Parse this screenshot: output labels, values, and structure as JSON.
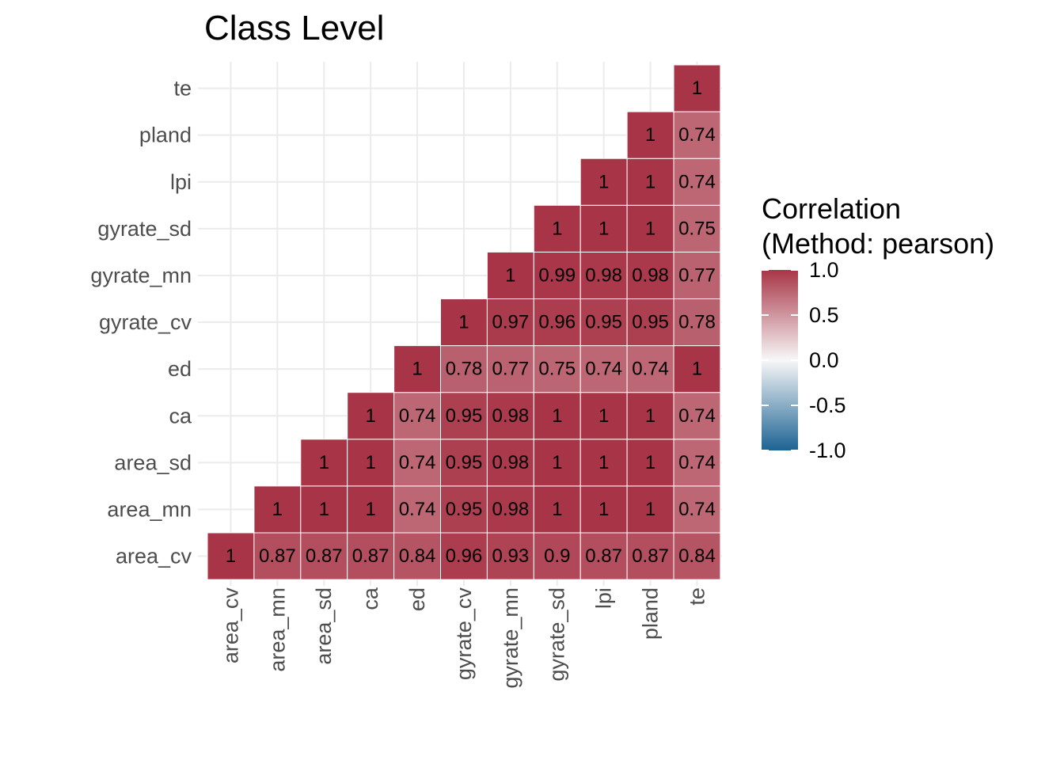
{
  "chart_data": {
    "type": "heatmap",
    "title": "Class Level",
    "variables": [
      "area_cv",
      "area_mn",
      "area_sd",
      "ca",
      "ed",
      "gyrate_cv",
      "gyrate_mn",
      "gyrate_sd",
      "lpi",
      "pland",
      "te"
    ],
    "cells": [
      {
        "x": "area_cv",
        "y": "area_cv",
        "value": 1,
        "label": "1"
      },
      {
        "x": "area_mn",
        "y": "area_cv",
        "value": 0.87,
        "label": "0.87"
      },
      {
        "x": "area_sd",
        "y": "area_cv",
        "value": 0.87,
        "label": "0.87"
      },
      {
        "x": "ca",
        "y": "area_cv",
        "value": 0.87,
        "label": "0.87"
      },
      {
        "x": "ed",
        "y": "area_cv",
        "value": 0.84,
        "label": "0.84"
      },
      {
        "x": "gyrate_cv",
        "y": "area_cv",
        "value": 0.96,
        "label": "0.96"
      },
      {
        "x": "gyrate_mn",
        "y": "area_cv",
        "value": 0.93,
        "label": "0.93"
      },
      {
        "x": "gyrate_sd",
        "y": "area_cv",
        "value": 0.9,
        "label": "0.9"
      },
      {
        "x": "lpi",
        "y": "area_cv",
        "value": 0.87,
        "label": "0.87"
      },
      {
        "x": "pland",
        "y": "area_cv",
        "value": 0.87,
        "label": "0.87"
      },
      {
        "x": "te",
        "y": "area_cv",
        "value": 0.84,
        "label": "0.84"
      },
      {
        "x": "area_mn",
        "y": "area_mn",
        "value": 1,
        "label": "1"
      },
      {
        "x": "area_sd",
        "y": "area_mn",
        "value": 1,
        "label": "1"
      },
      {
        "x": "ca",
        "y": "area_mn",
        "value": 1,
        "label": "1"
      },
      {
        "x": "ed",
        "y": "area_mn",
        "value": 0.74,
        "label": "0.74"
      },
      {
        "x": "gyrate_cv",
        "y": "area_mn",
        "value": 0.95,
        "label": "0.95"
      },
      {
        "x": "gyrate_mn",
        "y": "area_mn",
        "value": 0.98,
        "label": "0.98"
      },
      {
        "x": "gyrate_sd",
        "y": "area_mn",
        "value": 1,
        "label": "1"
      },
      {
        "x": "lpi",
        "y": "area_mn",
        "value": 1,
        "label": "1"
      },
      {
        "x": "pland",
        "y": "area_mn",
        "value": 1,
        "label": "1"
      },
      {
        "x": "te",
        "y": "area_mn",
        "value": 0.74,
        "label": "0.74"
      },
      {
        "x": "area_sd",
        "y": "area_sd",
        "value": 1,
        "label": "1"
      },
      {
        "x": "ca",
        "y": "area_sd",
        "value": 1,
        "label": "1"
      },
      {
        "x": "ed",
        "y": "area_sd",
        "value": 0.74,
        "label": "0.74"
      },
      {
        "x": "gyrate_cv",
        "y": "area_sd",
        "value": 0.95,
        "label": "0.95"
      },
      {
        "x": "gyrate_mn",
        "y": "area_sd",
        "value": 0.98,
        "label": "0.98"
      },
      {
        "x": "gyrate_sd",
        "y": "area_sd",
        "value": 1,
        "label": "1"
      },
      {
        "x": "lpi",
        "y": "area_sd",
        "value": 1,
        "label": "1"
      },
      {
        "x": "pland",
        "y": "area_sd",
        "value": 1,
        "label": "1"
      },
      {
        "x": "te",
        "y": "area_sd",
        "value": 0.74,
        "label": "0.74"
      },
      {
        "x": "ca",
        "y": "ca",
        "value": 1,
        "label": "1"
      },
      {
        "x": "ed",
        "y": "ca",
        "value": 0.74,
        "label": "0.74"
      },
      {
        "x": "gyrate_cv",
        "y": "ca",
        "value": 0.95,
        "label": "0.95"
      },
      {
        "x": "gyrate_mn",
        "y": "ca",
        "value": 0.98,
        "label": "0.98"
      },
      {
        "x": "gyrate_sd",
        "y": "ca",
        "value": 1,
        "label": "1"
      },
      {
        "x": "lpi",
        "y": "ca",
        "value": 1,
        "label": "1"
      },
      {
        "x": "pland",
        "y": "ca",
        "value": 1,
        "label": "1"
      },
      {
        "x": "te",
        "y": "ca",
        "value": 0.74,
        "label": "0.74"
      },
      {
        "x": "ed",
        "y": "ed",
        "value": 1,
        "label": "1"
      },
      {
        "x": "gyrate_cv",
        "y": "ed",
        "value": 0.78,
        "label": "0.78"
      },
      {
        "x": "gyrate_mn",
        "y": "ed",
        "value": 0.77,
        "label": "0.77"
      },
      {
        "x": "gyrate_sd",
        "y": "ed",
        "value": 0.75,
        "label": "0.75"
      },
      {
        "x": "lpi",
        "y": "ed",
        "value": 0.74,
        "label": "0.74"
      },
      {
        "x": "pland",
        "y": "ed",
        "value": 0.74,
        "label": "0.74"
      },
      {
        "x": "te",
        "y": "ed",
        "value": 1,
        "label": "1"
      },
      {
        "x": "gyrate_cv",
        "y": "gyrate_cv",
        "value": 1,
        "label": "1"
      },
      {
        "x": "gyrate_mn",
        "y": "gyrate_cv",
        "value": 0.97,
        "label": "0.97"
      },
      {
        "x": "gyrate_sd",
        "y": "gyrate_cv",
        "value": 0.96,
        "label": "0.96"
      },
      {
        "x": "lpi",
        "y": "gyrate_cv",
        "value": 0.95,
        "label": "0.95"
      },
      {
        "x": "pland",
        "y": "gyrate_cv",
        "value": 0.95,
        "label": "0.95"
      },
      {
        "x": "te",
        "y": "gyrate_cv",
        "value": 0.78,
        "label": "0.78"
      },
      {
        "x": "gyrate_mn",
        "y": "gyrate_mn",
        "value": 1,
        "label": "1"
      },
      {
        "x": "gyrate_sd",
        "y": "gyrate_mn",
        "value": 0.99,
        "label": "0.99"
      },
      {
        "x": "lpi",
        "y": "gyrate_mn",
        "value": 0.98,
        "label": "0.98"
      },
      {
        "x": "pland",
        "y": "gyrate_mn",
        "value": 0.98,
        "label": "0.98"
      },
      {
        "x": "te",
        "y": "gyrate_mn",
        "value": 0.77,
        "label": "0.77"
      },
      {
        "x": "gyrate_sd",
        "y": "gyrate_sd",
        "value": 1,
        "label": "1"
      },
      {
        "x": "lpi",
        "y": "gyrate_sd",
        "value": 1,
        "label": "1"
      },
      {
        "x": "pland",
        "y": "gyrate_sd",
        "value": 1,
        "label": "1"
      },
      {
        "x": "te",
        "y": "gyrate_sd",
        "value": 0.75,
        "label": "0.75"
      },
      {
        "x": "lpi",
        "y": "lpi",
        "value": 1,
        "label": "1"
      },
      {
        "x": "pland",
        "y": "lpi",
        "value": 1,
        "label": "1"
      },
      {
        "x": "te",
        "y": "lpi",
        "value": 0.74,
        "label": "0.74"
      },
      {
        "x": "pland",
        "y": "pland",
        "value": 1,
        "label": "1"
      },
      {
        "x": "te",
        "y": "pland",
        "value": 0.74,
        "label": "0.74"
      },
      {
        "x": "te",
        "y": "te",
        "value": 1,
        "label": "1"
      }
    ],
    "legend": {
      "title_lines": [
        "Correlation",
        "(Method: pearson)"
      ],
      "breaks": [
        1.0,
        0.5,
        0.0,
        -0.5,
        -1.0
      ],
      "break_labels": [
        "1.0",
        "0.5",
        "0.0",
        "-0.5",
        "-1.0"
      ],
      "limits": [
        -1,
        1
      ],
      "placement": "right"
    },
    "colors": {
      "high": "#A83547",
      "mid": "#F7F7F7",
      "low": "#1C6393",
      "grid": "#EBEBEB"
    },
    "grid": true
  }
}
